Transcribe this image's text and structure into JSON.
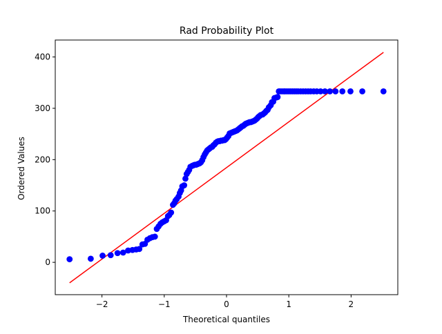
{
  "chart_data": {
    "type": "scatter",
    "title": "Rad Probability Plot",
    "xlabel": "Theoretical quantiles",
    "ylabel": "Ordered Values",
    "xlim": [
      -2.75,
      2.75
    ],
    "ylim": [
      -63,
      433
    ],
    "x_ticks": [
      -2,
      -1,
      0,
      1,
      2
    ],
    "y_ticks": [
      0,
      100,
      200,
      300,
      400
    ],
    "x_tick_labels": [
      "−2",
      "−1",
      "0",
      "1",
      "2"
    ],
    "y_tick_labels": [
      "0",
      "100",
      "200",
      "300",
      "400"
    ],
    "grid": false,
    "legend": "none",
    "marker_color": "#0000ff",
    "line_color": "#ff0000",
    "fit_line": {
      "x": [
        -2.52,
        2.52
      ],
      "y": [
        -40,
        409
      ]
    },
    "points": {
      "x": [
        -2.52,
        -2.18,
        -1.99,
        -1.86,
        -1.75,
        -1.66,
        -1.58,
        -1.51,
        -1.45,
        -1.4,
        -1.35,
        -1.31,
        -1.27,
        -1.23,
        -1.19,
        -1.15,
        -1.12,
        -1.09,
        -1.06,
        -1.03,
        -1.0,
        -0.97,
        -0.94,
        -0.92,
        -0.89,
        -0.86,
        -0.84,
        -0.82,
        -0.8,
        -0.77,
        -0.75,
        -0.73,
        -0.71,
        -0.68,
        -0.66,
        -0.64,
        -0.62,
        -0.6,
        -0.58,
        -0.55,
        -0.53,
        -0.51,
        -0.49,
        -0.47,
        -0.45,
        -0.43,
        -0.41,
        -0.39,
        -0.37,
        -0.35,
        -0.33,
        -0.31,
        -0.29,
        -0.27,
        -0.25,
        -0.23,
        -0.21,
        -0.19,
        -0.17,
        -0.15,
        -0.13,
        -0.11,
        -0.09,
        -0.07,
        -0.05,
        -0.03,
        -0.01,
        0.01,
        0.03,
        0.05,
        0.07,
        0.09,
        0.11,
        0.13,
        0.15,
        0.17,
        0.19,
        0.21,
        0.23,
        0.25,
        0.27,
        0.29,
        0.31,
        0.33,
        0.35,
        0.37,
        0.39,
        0.41,
        0.43,
        0.45,
        0.47,
        0.49,
        0.51,
        0.53,
        0.55,
        0.58,
        0.6,
        0.62,
        0.64,
        0.66,
        0.68,
        0.71,
        0.73,
        0.75,
        0.77,
        0.8,
        0.82,
        0.84,
        0.86,
        0.89,
        0.92,
        0.94,
        0.97,
        1.0,
        1.03,
        1.06,
        1.09,
        1.12,
        1.15,
        1.19,
        1.23,
        1.27,
        1.31,
        1.35,
        1.4,
        1.45,
        1.51,
        1.58,
        1.66,
        1.75,
        1.86,
        1.99,
        2.18,
        2.52
      ],
      "y": [
        6,
        7,
        13,
        14,
        18,
        19,
        23,
        24,
        25,
        26,
        35,
        36,
        44,
        47,
        49,
        50,
        65,
        70,
        75,
        78,
        80,
        82,
        90,
        92,
        97,
        112,
        115,
        120,
        123,
        128,
        135,
        140,
        148,
        150,
        163,
        172,
        176,
        180,
        186,
        188,
        189,
        190,
        190,
        191,
        192,
        193,
        195,
        199,
        205,
        210,
        214,
        218,
        220,
        222,
        224,
        225,
        228,
        230,
        233,
        235,
        236,
        236,
        237,
        237,
        238,
        238,
        240,
        243,
        246,
        251,
        252,
        253,
        254,
        255,
        256,
        257,
        259,
        261,
        263,
        265,
        266,
        268,
        270,
        271,
        272,
        273,
        273,
        274,
        275,
        276,
        278,
        280,
        283,
        285,
        287,
        288,
        290,
        292,
        295,
        297,
        302,
        306,
        312,
        313,
        320,
        321,
        322,
        333,
        333,
        333,
        333,
        333,
        333,
        333,
        333,
        333,
        333,
        333,
        333,
        333,
        333,
        333,
        333,
        333,
        333,
        333,
        333,
        333,
        333,
        333,
        333,
        333,
        333,
        333
      ]
    }
  }
}
